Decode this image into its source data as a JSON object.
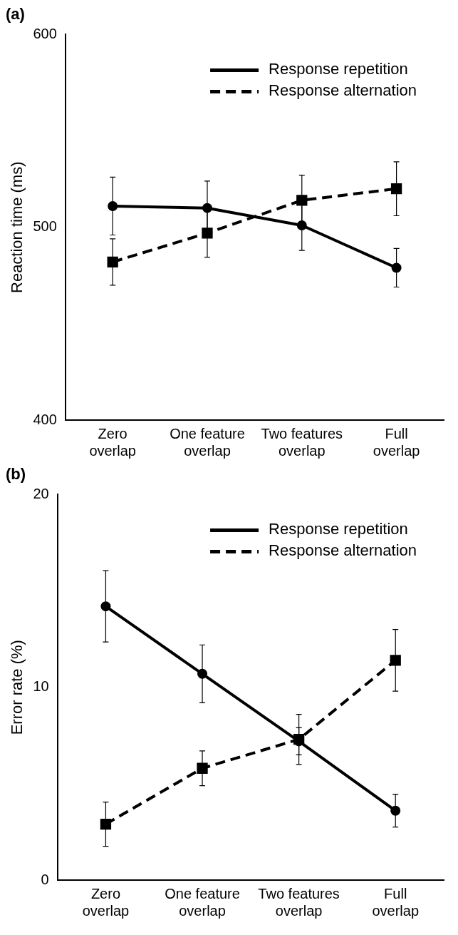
{
  "chart_data": [
    {
      "type": "line",
      "title": "(a)",
      "ylabel": "Reaction time (ms)",
      "categories": [
        "Zero overlap",
        "One feature overlap",
        "Two features overlap",
        "Full overlap"
      ],
      "ylim": [
        400,
        600
      ],
      "yticks": [
        400,
        500,
        600
      ],
      "grid": false,
      "legend": "top right",
      "series": [
        {
          "name": "Response repetition",
          "color": "#000000",
          "line_style": "solid",
          "marker": "circle",
          "values": [
            511,
            510,
            501,
            479
          ],
          "errors": [
            15,
            14,
            13,
            10
          ]
        },
        {
          "name": "Response alternation",
          "color": "#000000",
          "line_style": "dashed",
          "marker": "square",
          "values": [
            482,
            497,
            514,
            520
          ],
          "errors": [
            12,
            12.5,
            13,
            14
          ]
        }
      ]
    },
    {
      "type": "line",
      "title": "(b)",
      "ylabel": "Error rate (%)",
      "categories": [
        "Zero overlap",
        "One feature overlap",
        "Two features overlap",
        "Full overlap"
      ],
      "ylim": [
        0,
        20
      ],
      "yticks": [
        0,
        10,
        20
      ],
      "grid": false,
      "legend": "top right",
      "series": [
        {
          "name": "Response repetition",
          "color": "#000000",
          "line_style": "solid",
          "marker": "circle",
          "values": [
            14.2,
            10.7,
            7.2,
            3.6
          ],
          "errors": [
            1.85,
            1.5,
            0.7,
            0.85
          ]
        },
        {
          "name": "Response alternation",
          "color": "#000000",
          "line_style": "dashed",
          "marker": "square",
          "values": [
            2.9,
            5.8,
            7.3,
            11.4
          ],
          "errors": [
            1.15,
            0.9,
            1.3,
            1.6
          ]
        }
      ]
    }
  ]
}
